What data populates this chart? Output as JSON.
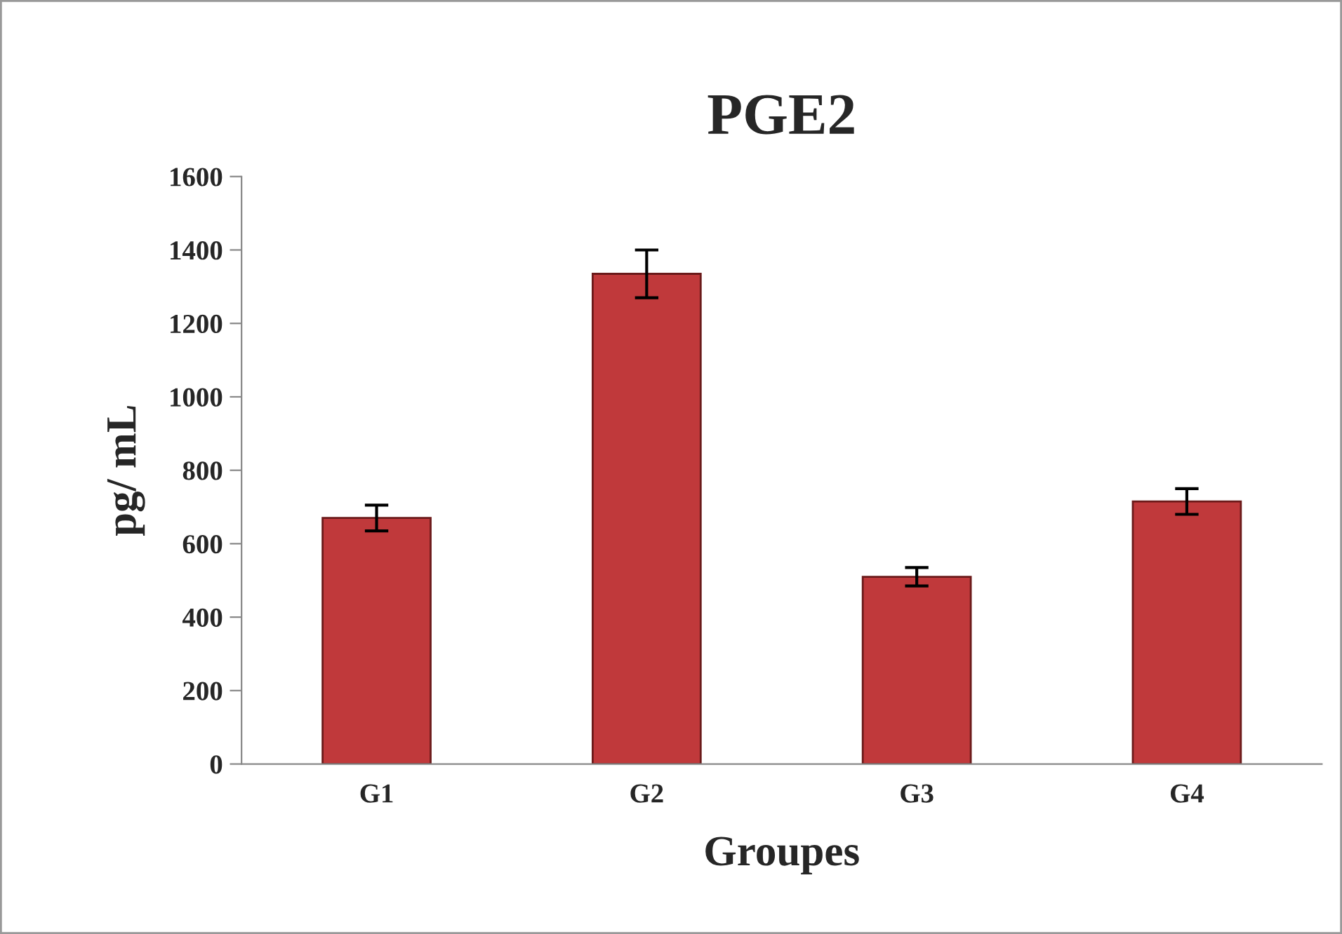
{
  "chart_data": {
    "type": "bar",
    "title": "PGE2",
    "xlabel": "Groupes",
    "ylabel": "pg/ mL",
    "categories": [
      "G1",
      "G2",
      "G3",
      "G4"
    ],
    "values": [
      670,
      1335,
      510,
      715
    ],
    "errors": [
      35,
      65,
      25,
      35
    ],
    "color": "#c0393b",
    "ylim": [
      0,
      1600
    ],
    "yticks": [
      0,
      200,
      400,
      600,
      800,
      1000,
      1200,
      1400,
      1600
    ],
    "grid": false,
    "legend": false
  }
}
